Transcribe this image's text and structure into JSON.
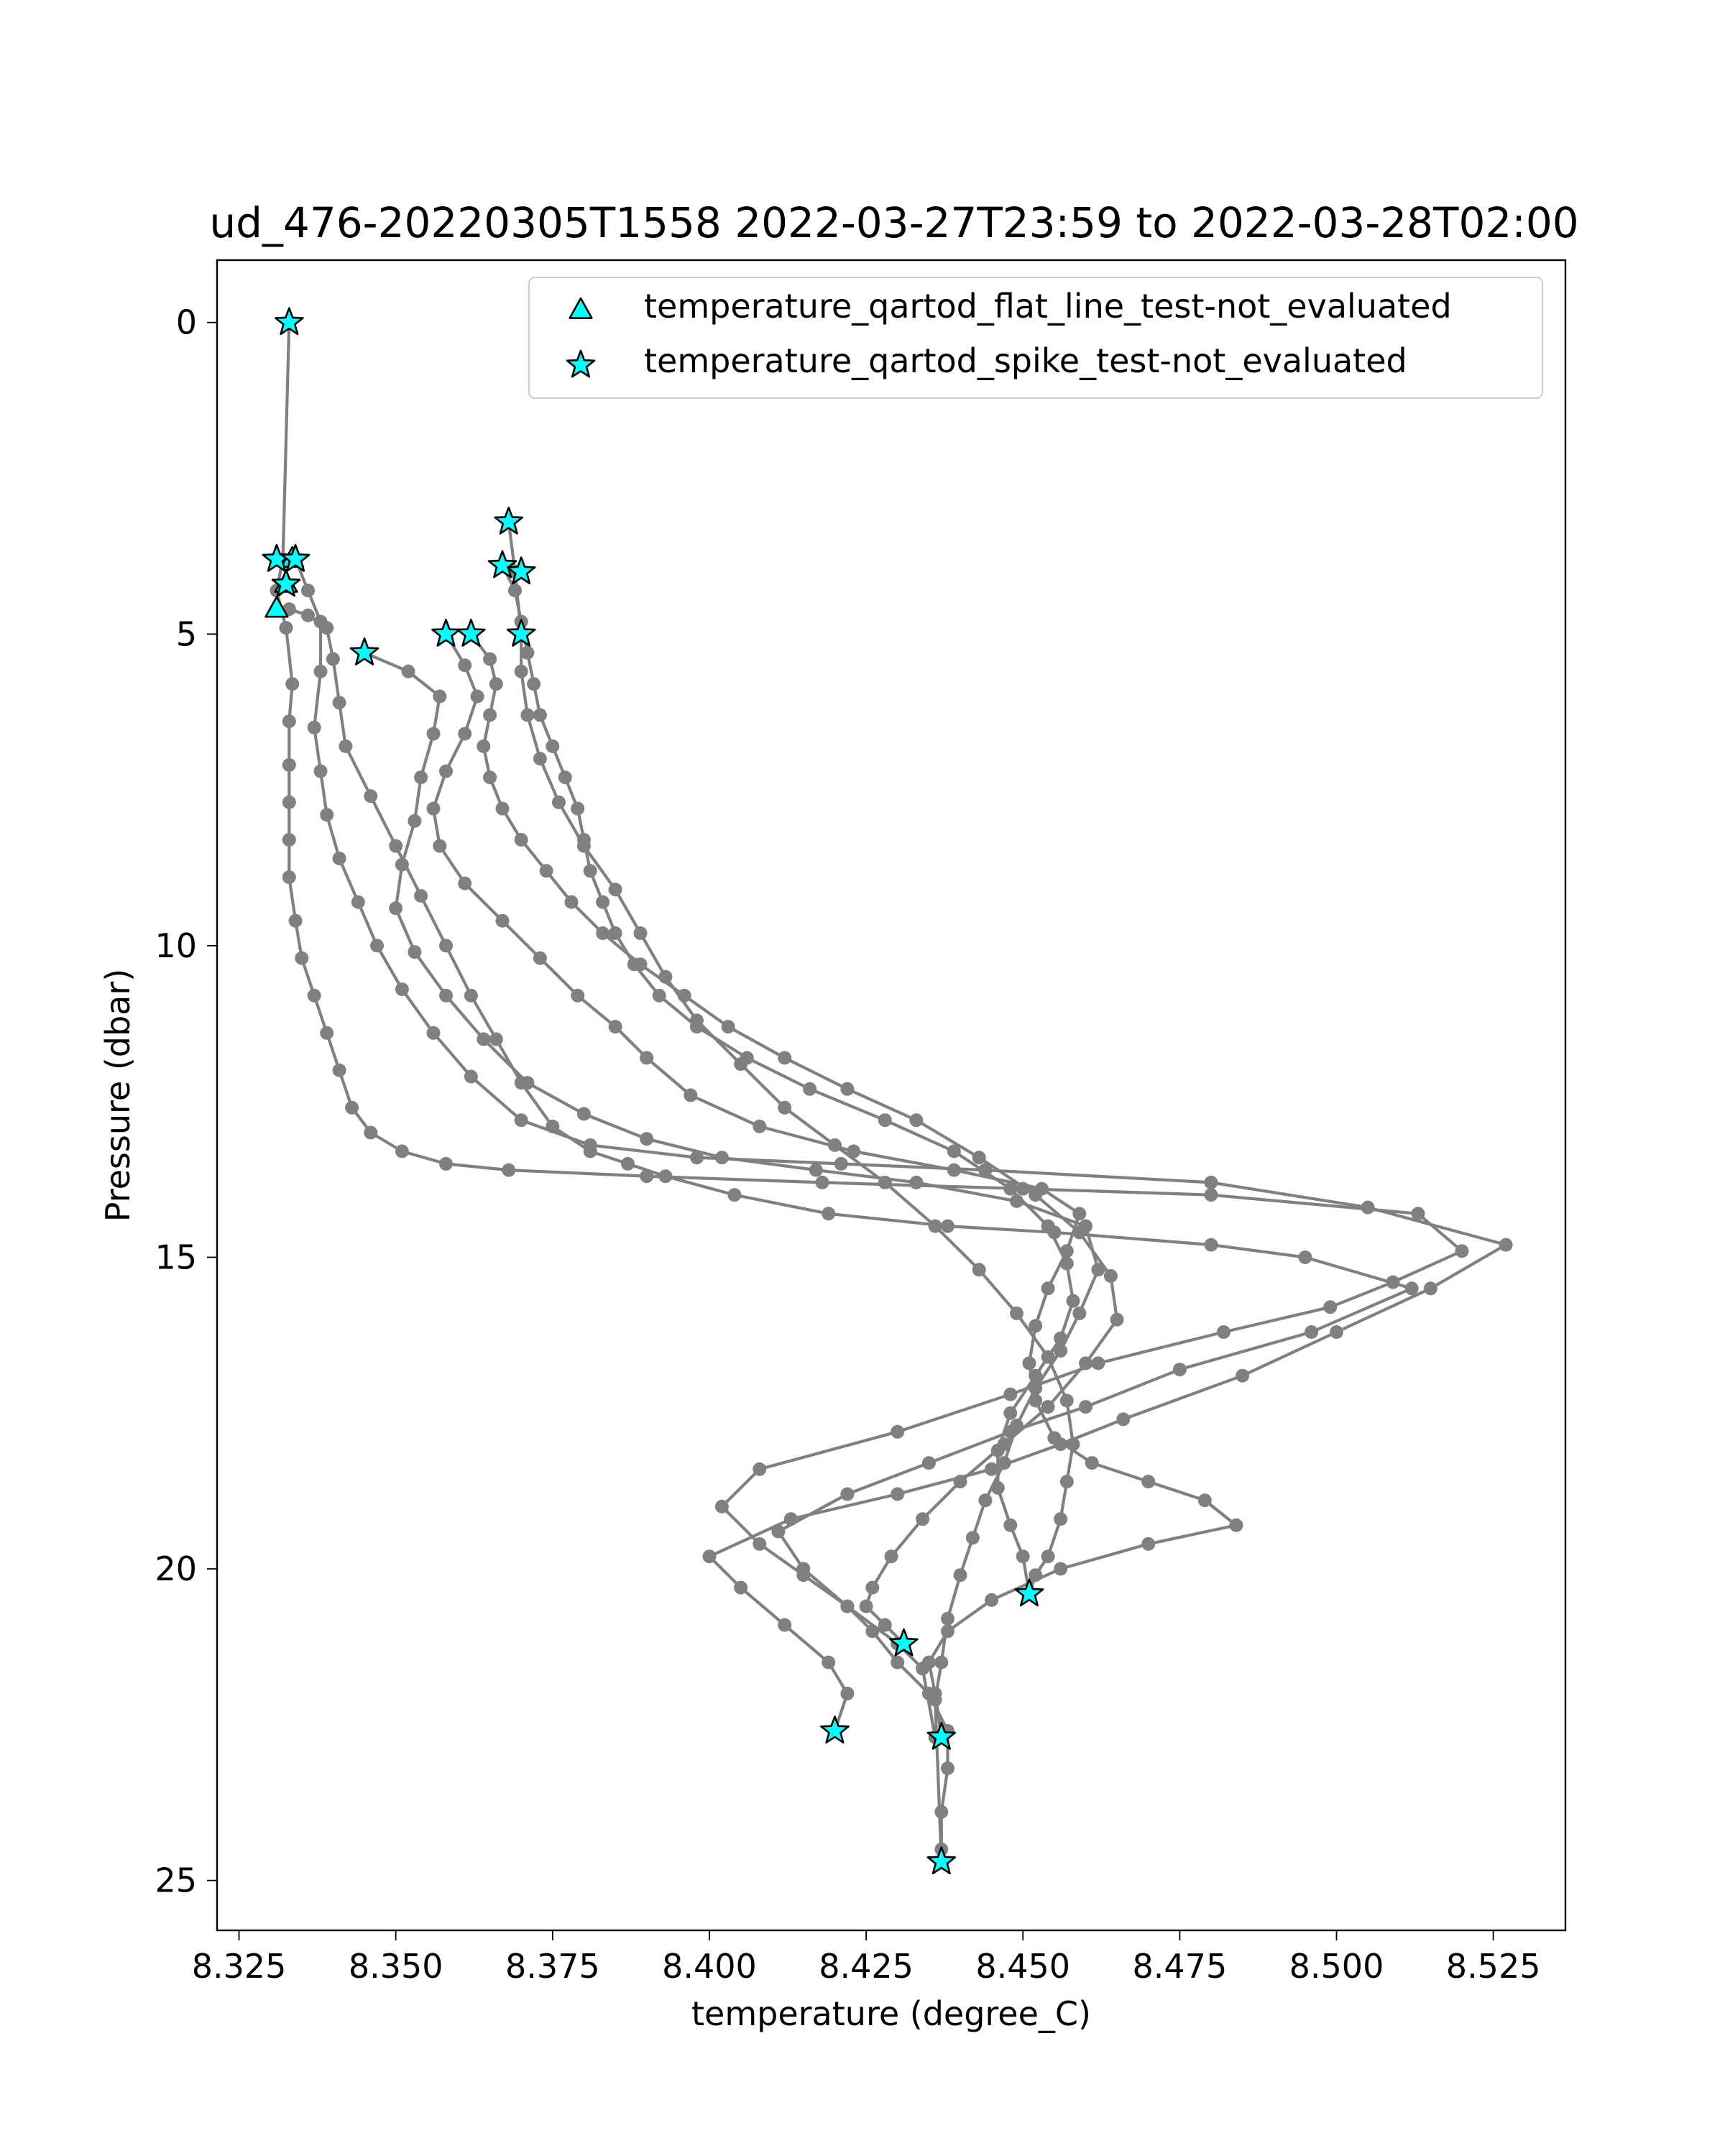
{
  "chart_data": {
    "type": "scatter",
    "title": "ud_476-20220305T1558 2022-03-27T23:59 to 2022-03-28T02:00",
    "xlabel": "temperature (degree_C)",
    "ylabel": "Pressure (dbar)",
    "xlim": [
      8.3215,
      8.5365
    ],
    "ylim": [
      25.8,
      -1.0
    ],
    "y_inverted": true,
    "grid": false,
    "x_ticks": [
      8.325,
      8.35,
      8.375,
      8.4,
      8.425,
      8.45,
      8.475,
      8.5,
      8.525
    ],
    "x_tick_labels": [
      "8.325",
      "8.350",
      "8.375",
      "8.400",
      "8.425",
      "8.450",
      "8.475",
      "8.500",
      "8.525"
    ],
    "y_ticks": [
      0,
      5,
      10,
      15,
      20,
      25
    ],
    "y_tick_labels": [
      "0",
      "5",
      "10",
      "15",
      "20",
      "25"
    ],
    "line_color": "#808080",
    "marker_color": "#00ffff",
    "legend": {
      "placement": "upper-right",
      "entries": [
        {
          "label": "temperature_qartod_flat_line_test-not_evaluated",
          "marker": "triangle"
        },
        {
          "label": "temperature_qartod_spike_test-not_evaluated",
          "marker": "star"
        }
      ]
    },
    "profiles": [
      {
        "x": [
          8.333,
          8.332,
          8.331,
          8.3325,
          8.3335,
          8.333,
          8.333,
          8.333,
          8.333,
          8.333,
          8.334,
          8.335,
          8.337,
          8.339,
          8.341,
          8.343,
          8.346,
          8.351,
          8.358,
          8.368,
          8.39,
          8.418,
          8.45,
          8.48,
          8.513,
          8.52,
          8.509,
          8.499,
          8.482,
          8.462,
          8.448,
          8.43,
          8.408,
          8.402,
          8.408,
          8.415,
          8.422,
          8.426,
          8.43,
          8.435,
          8.438,
          8.438,
          8.437,
          8.437,
          8.437
        ],
        "y": [
          0.0,
          3.8,
          4.3,
          4.9,
          5.8,
          6.4,
          7.1,
          7.7,
          8.3,
          8.9,
          9.6,
          10.2,
          10.8,
          11.4,
          12.0,
          12.6,
          13.0,
          13.3,
          13.5,
          13.6,
          13.7,
          13.8,
          13.9,
          14.0,
          14.3,
          14.9,
          15.4,
          15.8,
          16.2,
          16.7,
          17.2,
          17.8,
          18.4,
          19.0,
          19.6,
          20.1,
          20.6,
          21.0,
          21.5,
          22.0,
          22.6,
          23.2,
          23.9,
          24.5,
          24.7
        ]
      },
      {
        "x": [
          8.334,
          8.336,
          8.338,
          8.338,
          8.337,
          8.338,
          8.339,
          8.341,
          8.344,
          8.347,
          8.351,
          8.356,
          8.362,
          8.37,
          8.381,
          8.398,
          8.421,
          8.444,
          8.48,
          8.505,
          8.527,
          8.515,
          8.5,
          8.485,
          8.466,
          8.456,
          8.445,
          8.43,
          8.413,
          8.4,
          8.405,
          8.412,
          8.419,
          8.422,
          8.42
        ],
        "y": [
          3.8,
          4.3,
          4.8,
          5.6,
          6.5,
          7.2,
          7.9,
          8.6,
          9.3,
          10.0,
          10.7,
          11.4,
          12.1,
          12.8,
          13.2,
          13.4,
          13.5,
          13.6,
          13.8,
          14.2,
          14.8,
          15.5,
          16.2,
          16.9,
          17.6,
          18.0,
          18.4,
          18.8,
          19.2,
          19.8,
          20.3,
          20.9,
          21.5,
          22.0,
          22.6
        ]
      },
      {
        "x": [
          8.331,
          8.333,
          8.336,
          8.339,
          8.34,
          8.341,
          8.342,
          8.346,
          8.35,
          8.354,
          8.358,
          8.362,
          8.366,
          8.37,
          8.375,
          8.381,
          8.387,
          8.393,
          8.404,
          8.419,
          8.438,
          8.455,
          8.48,
          8.495,
          8.512,
          8.496,
          8.475,
          8.46,
          8.448,
          8.435,
          8.422,
          8.411,
          8.415,
          8.422,
          8.43,
          8.434,
          8.436
        ],
        "y": [
          4.6,
          4.6,
          4.7,
          4.9,
          5.4,
          6.1,
          6.8,
          7.6,
          8.4,
          9.2,
          10.0,
          10.8,
          11.5,
          12.2,
          12.9,
          13.3,
          13.5,
          13.7,
          14.0,
          14.3,
          14.5,
          14.6,
          14.8,
          15.0,
          15.5,
          16.2,
          16.8,
          17.4,
          17.8,
          18.3,
          18.8,
          19.4,
          20.0,
          20.6,
          21.2,
          21.6,
          22.7
        ]
      },
      {
        "x": [
          8.345,
          8.352,
          8.357,
          8.356,
          8.354,
          8.353,
          8.351,
          8.35,
          8.353,
          8.358,
          8.364,
          8.371,
          8.38,
          8.39,
          8.402,
          8.417,
          8.433,
          8.449,
          8.46,
          8.462,
          8.459,
          8.456,
          8.452,
          8.449,
          8.447,
          8.444,
          8.442,
          8.44,
          8.438,
          8.437,
          8.436,
          8.437
        ],
        "y": [
          5.3,
          5.6,
          6.0,
          6.6,
          7.3,
          8.0,
          8.7,
          9.4,
          10.1,
          10.8,
          11.5,
          12.2,
          12.7,
          13.1,
          13.4,
          13.6,
          13.8,
          14.1,
          14.5,
          15.2,
          15.9,
          16.5,
          17.1,
          17.7,
          18.3,
          18.9,
          19.5,
          20.1,
          20.8,
          21.5,
          22.1,
          24.7
        ]
      },
      {
        "x": [
          8.358,
          8.361,
          8.363,
          8.361,
          8.358,
          8.356,
          8.357,
          8.361,
          8.367,
          8.373,
          8.379,
          8.385,
          8.39,
          8.397,
          8.408,
          8.423,
          8.439,
          8.453,
          8.459,
          8.457,
          8.454,
          8.452,
          8.451,
          8.452,
          8.455,
          8.461,
          8.47,
          8.479,
          8.484,
          8.47,
          8.456,
          8.445,
          8.438,
          8.435,
          8.436,
          8.437
        ],
        "y": [
          5.0,
          5.5,
          6.0,
          6.6,
          7.2,
          7.8,
          8.4,
          9.0,
          9.6,
          10.2,
          10.8,
          11.3,
          11.8,
          12.4,
          12.9,
          13.3,
          13.6,
          13.9,
          14.3,
          14.9,
          15.5,
          16.1,
          16.7,
          17.3,
          17.9,
          18.3,
          18.6,
          18.9,
          19.3,
          19.6,
          20.0,
          20.5,
          21.0,
          21.5,
          22.0,
          22.7
        ]
      },
      {
        "x": [
          8.362,
          8.365,
          8.366,
          8.365,
          8.364,
          8.365,
          8.367,
          8.37,
          8.374,
          8.378,
          8.383,
          8.389,
          8.396,
          8.403,
          8.412,
          8.422,
          8.433,
          8.443,
          8.452,
          8.459,
          8.464,
          8.465,
          8.46,
          8.454,
          8.447,
          8.44,
          8.434,
          8.429,
          8.426,
          8.425,
          8.428,
          8.431
        ],
        "y": [
          5.0,
          5.4,
          5.8,
          6.3,
          6.8,
          7.3,
          7.8,
          8.3,
          8.8,
          9.3,
          9.8,
          10.3,
          10.8,
          11.3,
          11.8,
          12.3,
          12.8,
          13.4,
          14.0,
          14.6,
          15.3,
          16.0,
          16.7,
          17.4,
          18.0,
          18.6,
          19.2,
          19.8,
          20.3,
          20.6,
          20.9,
          21.2
        ]
      },
      {
        "x": [
          8.367,
          8.369,
          8.37,
          8.371,
          8.372,
          8.373,
          8.375,
          8.377,
          8.379,
          8.38,
          8.381,
          8.383,
          8.385,
          8.388,
          8.392,
          8.398,
          8.406,
          8.416,
          8.428,
          8.439,
          8.448,
          8.454,
          8.457,
          8.458,
          8.456,
          8.452,
          8.448,
          8.446,
          8.446,
          8.448,
          8.45,
          8.451
        ],
        "y": [
          3.9,
          4.3,
          4.8,
          5.3,
          5.8,
          6.3,
          6.8,
          7.3,
          7.8,
          8.3,
          8.8,
          9.3,
          9.8,
          10.3,
          10.8,
          11.3,
          11.8,
          12.3,
          12.8,
          13.3,
          13.9,
          14.5,
          15.1,
          15.7,
          16.3,
          16.9,
          17.5,
          18.1,
          18.7,
          19.3,
          19.8,
          20.4
        ]
      },
      {
        "x": [
          8.368,
          8.369,
          8.37,
          8.37,
          8.371,
          8.373,
          8.376,
          8.38,
          8.385,
          8.389,
          8.393,
          8.398,
          8.405,
          8.412,
          8.42,
          8.428,
          8.436,
          8.443,
          8.449,
          8.454,
          8.457,
          8.458,
          8.457,
          8.456,
          8.454,
          8.452,
          8.451
        ],
        "y": [
          3.2,
          4.0,
          5.0,
          5.6,
          6.3,
          7.0,
          7.7,
          8.4,
          9.1,
          9.8,
          10.5,
          11.2,
          11.9,
          12.6,
          13.2,
          13.8,
          14.5,
          15.2,
          15.9,
          16.6,
          17.3,
          18.0,
          18.6,
          19.2,
          19.8,
          20.1,
          20.4
        ]
      }
    ],
    "flat_line_flags": {
      "x": [
        8.331,
        8.3325,
        8.3335
      ],
      "y": [
        4.6,
        4.2,
        3.8
      ]
    },
    "spike_flags": {
      "x": [
        8.333,
        8.331,
        8.334,
        8.3325,
        8.345,
        8.358,
        8.362,
        8.367,
        8.368,
        8.37,
        8.37,
        8.451,
        8.431,
        8.42,
        8.437,
        8.437
      ],
      "y": [
        0.0,
        3.8,
        3.8,
        4.2,
        5.3,
        5.0,
        5.0,
        3.9,
        3.2,
        4.0,
        5.0,
        20.4,
        21.2,
        22.6,
        22.7,
        24.7
      ]
    }
  }
}
